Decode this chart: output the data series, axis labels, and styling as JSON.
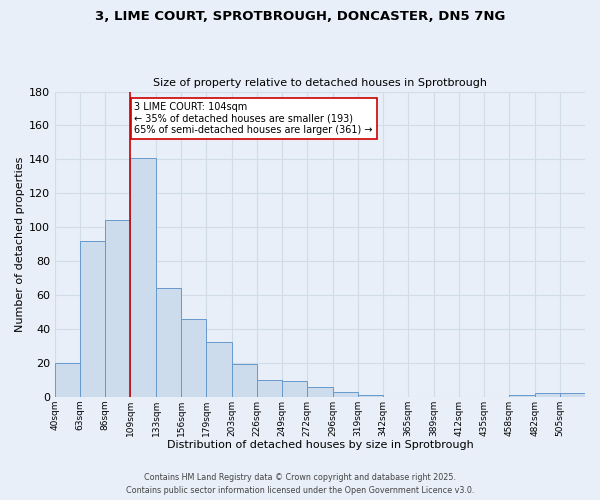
{
  "title": "3, LIME COURT, SPROTBROUGH, DONCASTER, DN5 7NG",
  "subtitle": "Size of property relative to detached houses in Sprotbrough",
  "xlabel": "Distribution of detached houses by size in Sprotbrough",
  "ylabel": "Number of detached properties",
  "bar_color": "#ccdcec",
  "bar_edge_color": "#6699cc",
  "background_color": "#e8eff8",
  "grid_color": "#d0dce8",
  "categories": [
    "40sqm",
    "63sqm",
    "86sqm",
    "109sqm",
    "133sqm",
    "156sqm",
    "179sqm",
    "203sqm",
    "226sqm",
    "249sqm",
    "272sqm",
    "296sqm",
    "319sqm",
    "342sqm",
    "365sqm",
    "389sqm",
    "412sqm",
    "435sqm",
    "458sqm",
    "482sqm",
    "505sqm"
  ],
  "values": [
    20,
    92,
    104,
    141,
    64,
    46,
    32,
    19,
    10,
    9,
    6,
    3,
    1,
    0,
    0,
    0,
    0,
    0,
    1,
    2,
    2
  ],
  "bin_edges": [
    40,
    63,
    86,
    109,
    133,
    156,
    179,
    203,
    226,
    249,
    272,
    296,
    319,
    342,
    365,
    389,
    412,
    435,
    458,
    482,
    505,
    528
  ],
  "vline_x": 109,
  "vline_color": "#cc0000",
  "annotation_title": "3 LIME COURT: 104sqm",
  "annotation_line1": "← 35% of detached houses are smaller (193)",
  "annotation_line2": "65% of semi-detached houses are larger (361) →",
  "annotation_box_color": "#ffffff",
  "annotation_box_edge": "#cc0000",
  "ylim": [
    0,
    180
  ],
  "yticks": [
    0,
    20,
    40,
    60,
    80,
    100,
    120,
    140,
    160,
    180
  ],
  "footnote1": "Contains HM Land Registry data © Crown copyright and database right 2025.",
  "footnote2": "Contains public sector information licensed under the Open Government Licence v3.0.",
  "figsize": [
    6.0,
    5.0
  ],
  "dpi": 100
}
